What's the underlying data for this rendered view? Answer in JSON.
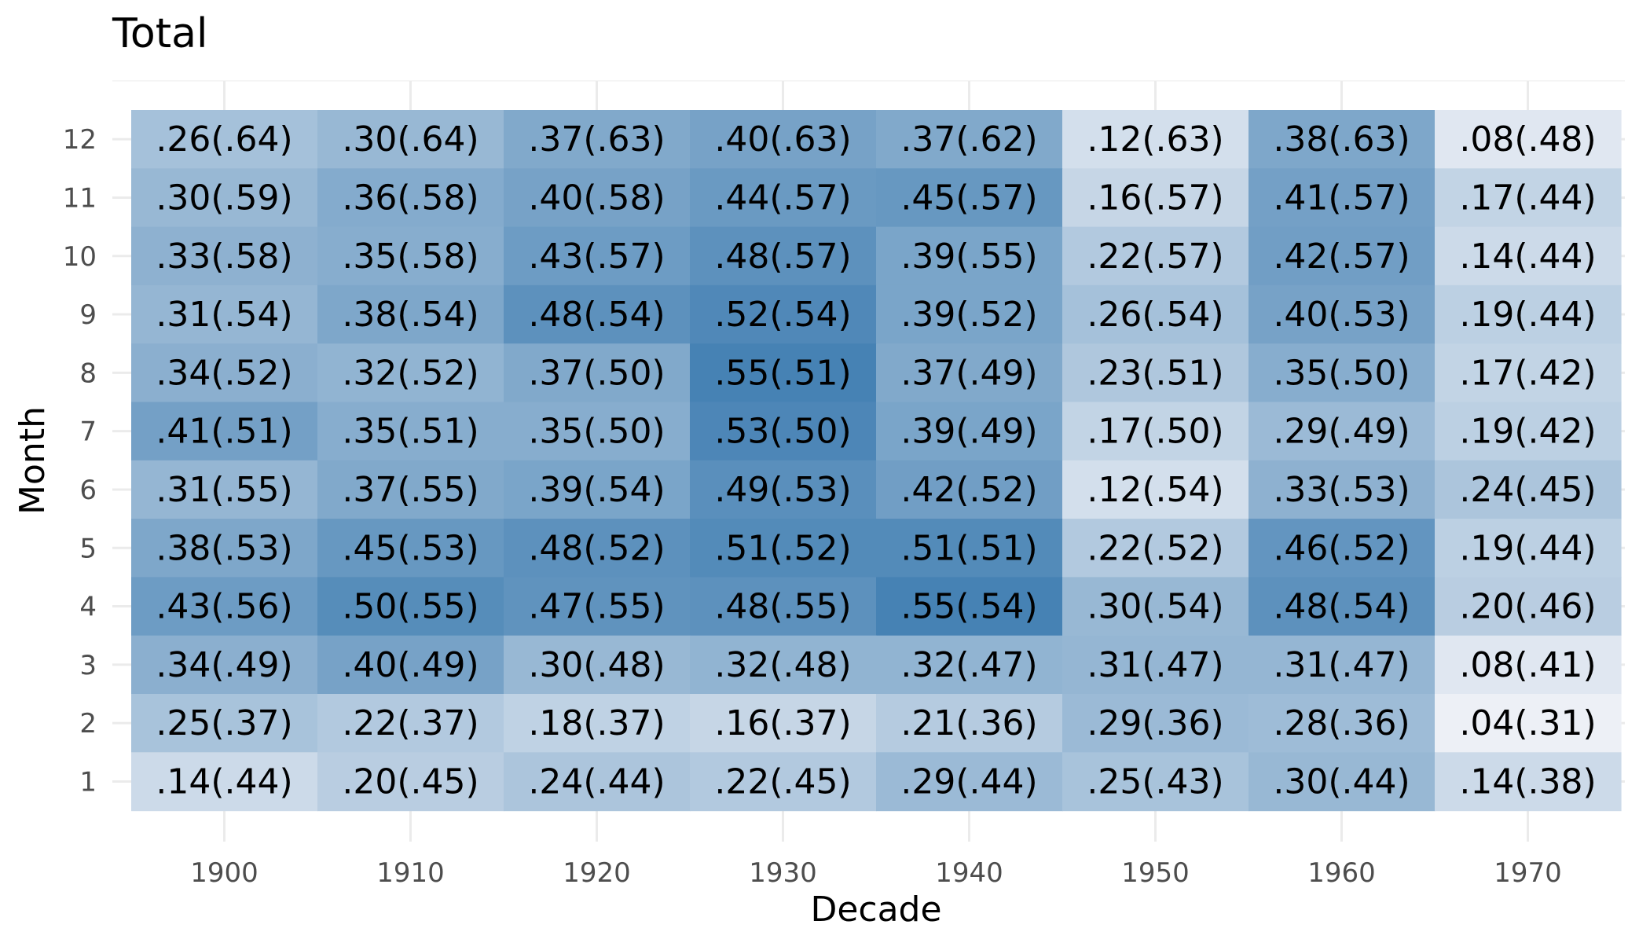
{
  "chart_data": {
    "type": "heatmap",
    "title": "Total",
    "xlabel": "Decade",
    "ylabel": "Month",
    "x": [
      "1900",
      "1910",
      "1920",
      "1930",
      "1940",
      "1950",
      "1960",
      "1970"
    ],
    "y": [
      "1",
      "2",
      "3",
      "4",
      "5",
      "6",
      "7",
      "8",
      "9",
      "10",
      "11",
      "12"
    ],
    "color_low": "#edf0f6",
    "color_high": "#4682b4",
    "fill_range": [
      0.04,
      0.55
    ],
    "grid": true,
    "legend": "none",
    "rows": [
      {
        "month": "12",
        "values": [
          0.26,
          0.3,
          0.37,
          0.4,
          0.37,
          0.12,
          0.38,
          0.08
        ],
        "labels": [
          ".26(.64)",
          ".30(.64)",
          ".37(.63)",
          ".40(.63)",
          ".37(.62)",
          ".12(.63)",
          ".38(.63)",
          ".08(.48)"
        ]
      },
      {
        "month": "11",
        "values": [
          0.3,
          0.36,
          0.4,
          0.44,
          0.45,
          0.16,
          0.41,
          0.17
        ],
        "labels": [
          ".30(.59)",
          ".36(.58)",
          ".40(.58)",
          ".44(.57)",
          ".45(.57)",
          ".16(.57)",
          ".41(.57)",
          ".17(.44)"
        ]
      },
      {
        "month": "10",
        "values": [
          0.33,
          0.35,
          0.43,
          0.48,
          0.39,
          0.22,
          0.42,
          0.14
        ],
        "labels": [
          ".33(.58)",
          ".35(.58)",
          ".43(.57)",
          ".48(.57)",
          ".39(.55)",
          ".22(.57)",
          ".42(.57)",
          ".14(.44)"
        ]
      },
      {
        "month": "9",
        "values": [
          0.31,
          0.38,
          0.48,
          0.52,
          0.39,
          0.26,
          0.4,
          0.19
        ],
        "labels": [
          ".31(.54)",
          ".38(.54)",
          ".48(.54)",
          ".52(.54)",
          ".39(.52)",
          ".26(.54)",
          ".40(.53)",
          ".19(.44)"
        ]
      },
      {
        "month": "8",
        "values": [
          0.34,
          0.32,
          0.37,
          0.55,
          0.37,
          0.23,
          0.35,
          0.17
        ],
        "labels": [
          ".34(.52)",
          ".32(.52)",
          ".37(.50)",
          ".55(.51)",
          ".37(.49)",
          ".23(.51)",
          ".35(.50)",
          ".17(.42)"
        ]
      },
      {
        "month": "7",
        "values": [
          0.41,
          0.35,
          0.35,
          0.53,
          0.39,
          0.17,
          0.29,
          0.19
        ],
        "labels": [
          ".41(.51)",
          ".35(.51)",
          ".35(.50)",
          ".53(.50)",
          ".39(.49)",
          ".17(.50)",
          ".29(.49)",
          ".19(.42)"
        ]
      },
      {
        "month": "6",
        "values": [
          0.31,
          0.37,
          0.39,
          0.49,
          0.42,
          0.12,
          0.33,
          0.24
        ],
        "labels": [
          ".31(.55)",
          ".37(.55)",
          ".39(.54)",
          ".49(.53)",
          ".42(.52)",
          ".12(.54)",
          ".33(.53)",
          ".24(.45)"
        ]
      },
      {
        "month": "5",
        "values": [
          0.38,
          0.45,
          0.48,
          0.51,
          0.51,
          0.22,
          0.46,
          0.19
        ],
        "labels": [
          ".38(.53)",
          ".45(.53)",
          ".48(.52)",
          ".51(.52)",
          ".51(.51)",
          ".22(.52)",
          ".46(.52)",
          ".19(.44)"
        ]
      },
      {
        "month": "4",
        "values": [
          0.43,
          0.5,
          0.47,
          0.48,
          0.55,
          0.3,
          0.48,
          0.2
        ],
        "labels": [
          ".43(.56)",
          ".50(.55)",
          ".47(.55)",
          ".48(.55)",
          ".55(.54)",
          ".30(.54)",
          ".48(.54)",
          ".20(.46)"
        ]
      },
      {
        "month": "3",
        "values": [
          0.34,
          0.4,
          0.3,
          0.32,
          0.32,
          0.31,
          0.31,
          0.08
        ],
        "labels": [
          ".34(.49)",
          ".40(.49)",
          ".30(.48)",
          ".32(.48)",
          ".32(.47)",
          ".31(.47)",
          ".31(.47)",
          ".08(.41)"
        ]
      },
      {
        "month": "2",
        "values": [
          0.25,
          0.22,
          0.18,
          0.16,
          0.21,
          0.29,
          0.28,
          0.04
        ],
        "labels": [
          ".25(.37)",
          ".22(.37)",
          ".18(.37)",
          ".16(.37)",
          ".21(.36)",
          ".29(.36)",
          ".28(.36)",
          ".04(.31)"
        ]
      },
      {
        "month": "1",
        "values": [
          0.14,
          0.2,
          0.24,
          0.22,
          0.29,
          0.25,
          0.3,
          0.14
        ],
        "labels": [
          ".14(.44)",
          ".20(.45)",
          ".24(.44)",
          ".22(.45)",
          ".29(.44)",
          ".25(.43)",
          ".30(.44)",
          ".14(.38)"
        ]
      }
    ]
  }
}
